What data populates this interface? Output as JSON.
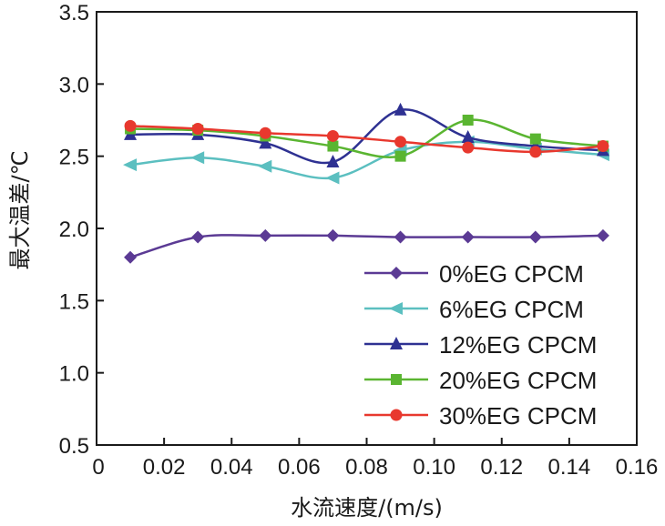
{
  "chart_data": {
    "type": "line",
    "title": "",
    "xlabel": "水流速度/(m/s)",
    "ylabel": "最大温差/℃",
    "xlim": [
      0,
      0.16
    ],
    "ylim": [
      0.5,
      3.5
    ],
    "grid": false,
    "legend_position": "bottom-right",
    "x_ticks": [
      0,
      0.02,
      0.04,
      0.06,
      0.08,
      0.1,
      0.12,
      0.14,
      0.16
    ],
    "x_tick_labels": [
      "0",
      "0.02",
      "0.04",
      "0.06",
      "0.08",
      "0.10",
      "0.12",
      "0.14",
      "0.16"
    ],
    "y_ticks": [
      0.5,
      1.0,
      1.5,
      2.0,
      2.5,
      3.0,
      3.5
    ],
    "y_tick_labels": [
      "0.5",
      "1.0",
      "1.5",
      "2.0",
      "2.5",
      "3.0",
      "3.5"
    ],
    "x": [
      0.01,
      0.03,
      0.05,
      0.07,
      0.09,
      0.11,
      0.13,
      0.15
    ],
    "series": [
      {
        "name": "0%EG CPCM",
        "color": "#5b3a94",
        "marker": "diamond",
        "values": [
          1.8,
          1.94,
          1.95,
          1.95,
          1.94,
          1.94,
          1.94,
          1.95
        ]
      },
      {
        "name": "6%EG CPCM",
        "color": "#5bbfc0",
        "marker": "triangle-left",
        "values": [
          2.44,
          2.49,
          2.43,
          2.35,
          2.54,
          2.6,
          2.55,
          2.51
        ]
      },
      {
        "name": "12%EG CPCM",
        "color": "#2e3192",
        "marker": "triangle-up",
        "values": [
          2.65,
          2.65,
          2.59,
          2.46,
          2.82,
          2.63,
          2.57,
          2.54
        ]
      },
      {
        "name": "20%EG CPCM",
        "color": "#5ab531",
        "marker": "square",
        "values": [
          2.69,
          2.68,
          2.64,
          2.57,
          2.5,
          2.75,
          2.62,
          2.57
        ]
      },
      {
        "name": "30%EG CPCM",
        "color": "#e8382e",
        "marker": "circle",
        "values": [
          2.71,
          2.69,
          2.66,
          2.64,
          2.6,
          2.56,
          2.53,
          2.57
        ]
      }
    ]
  }
}
